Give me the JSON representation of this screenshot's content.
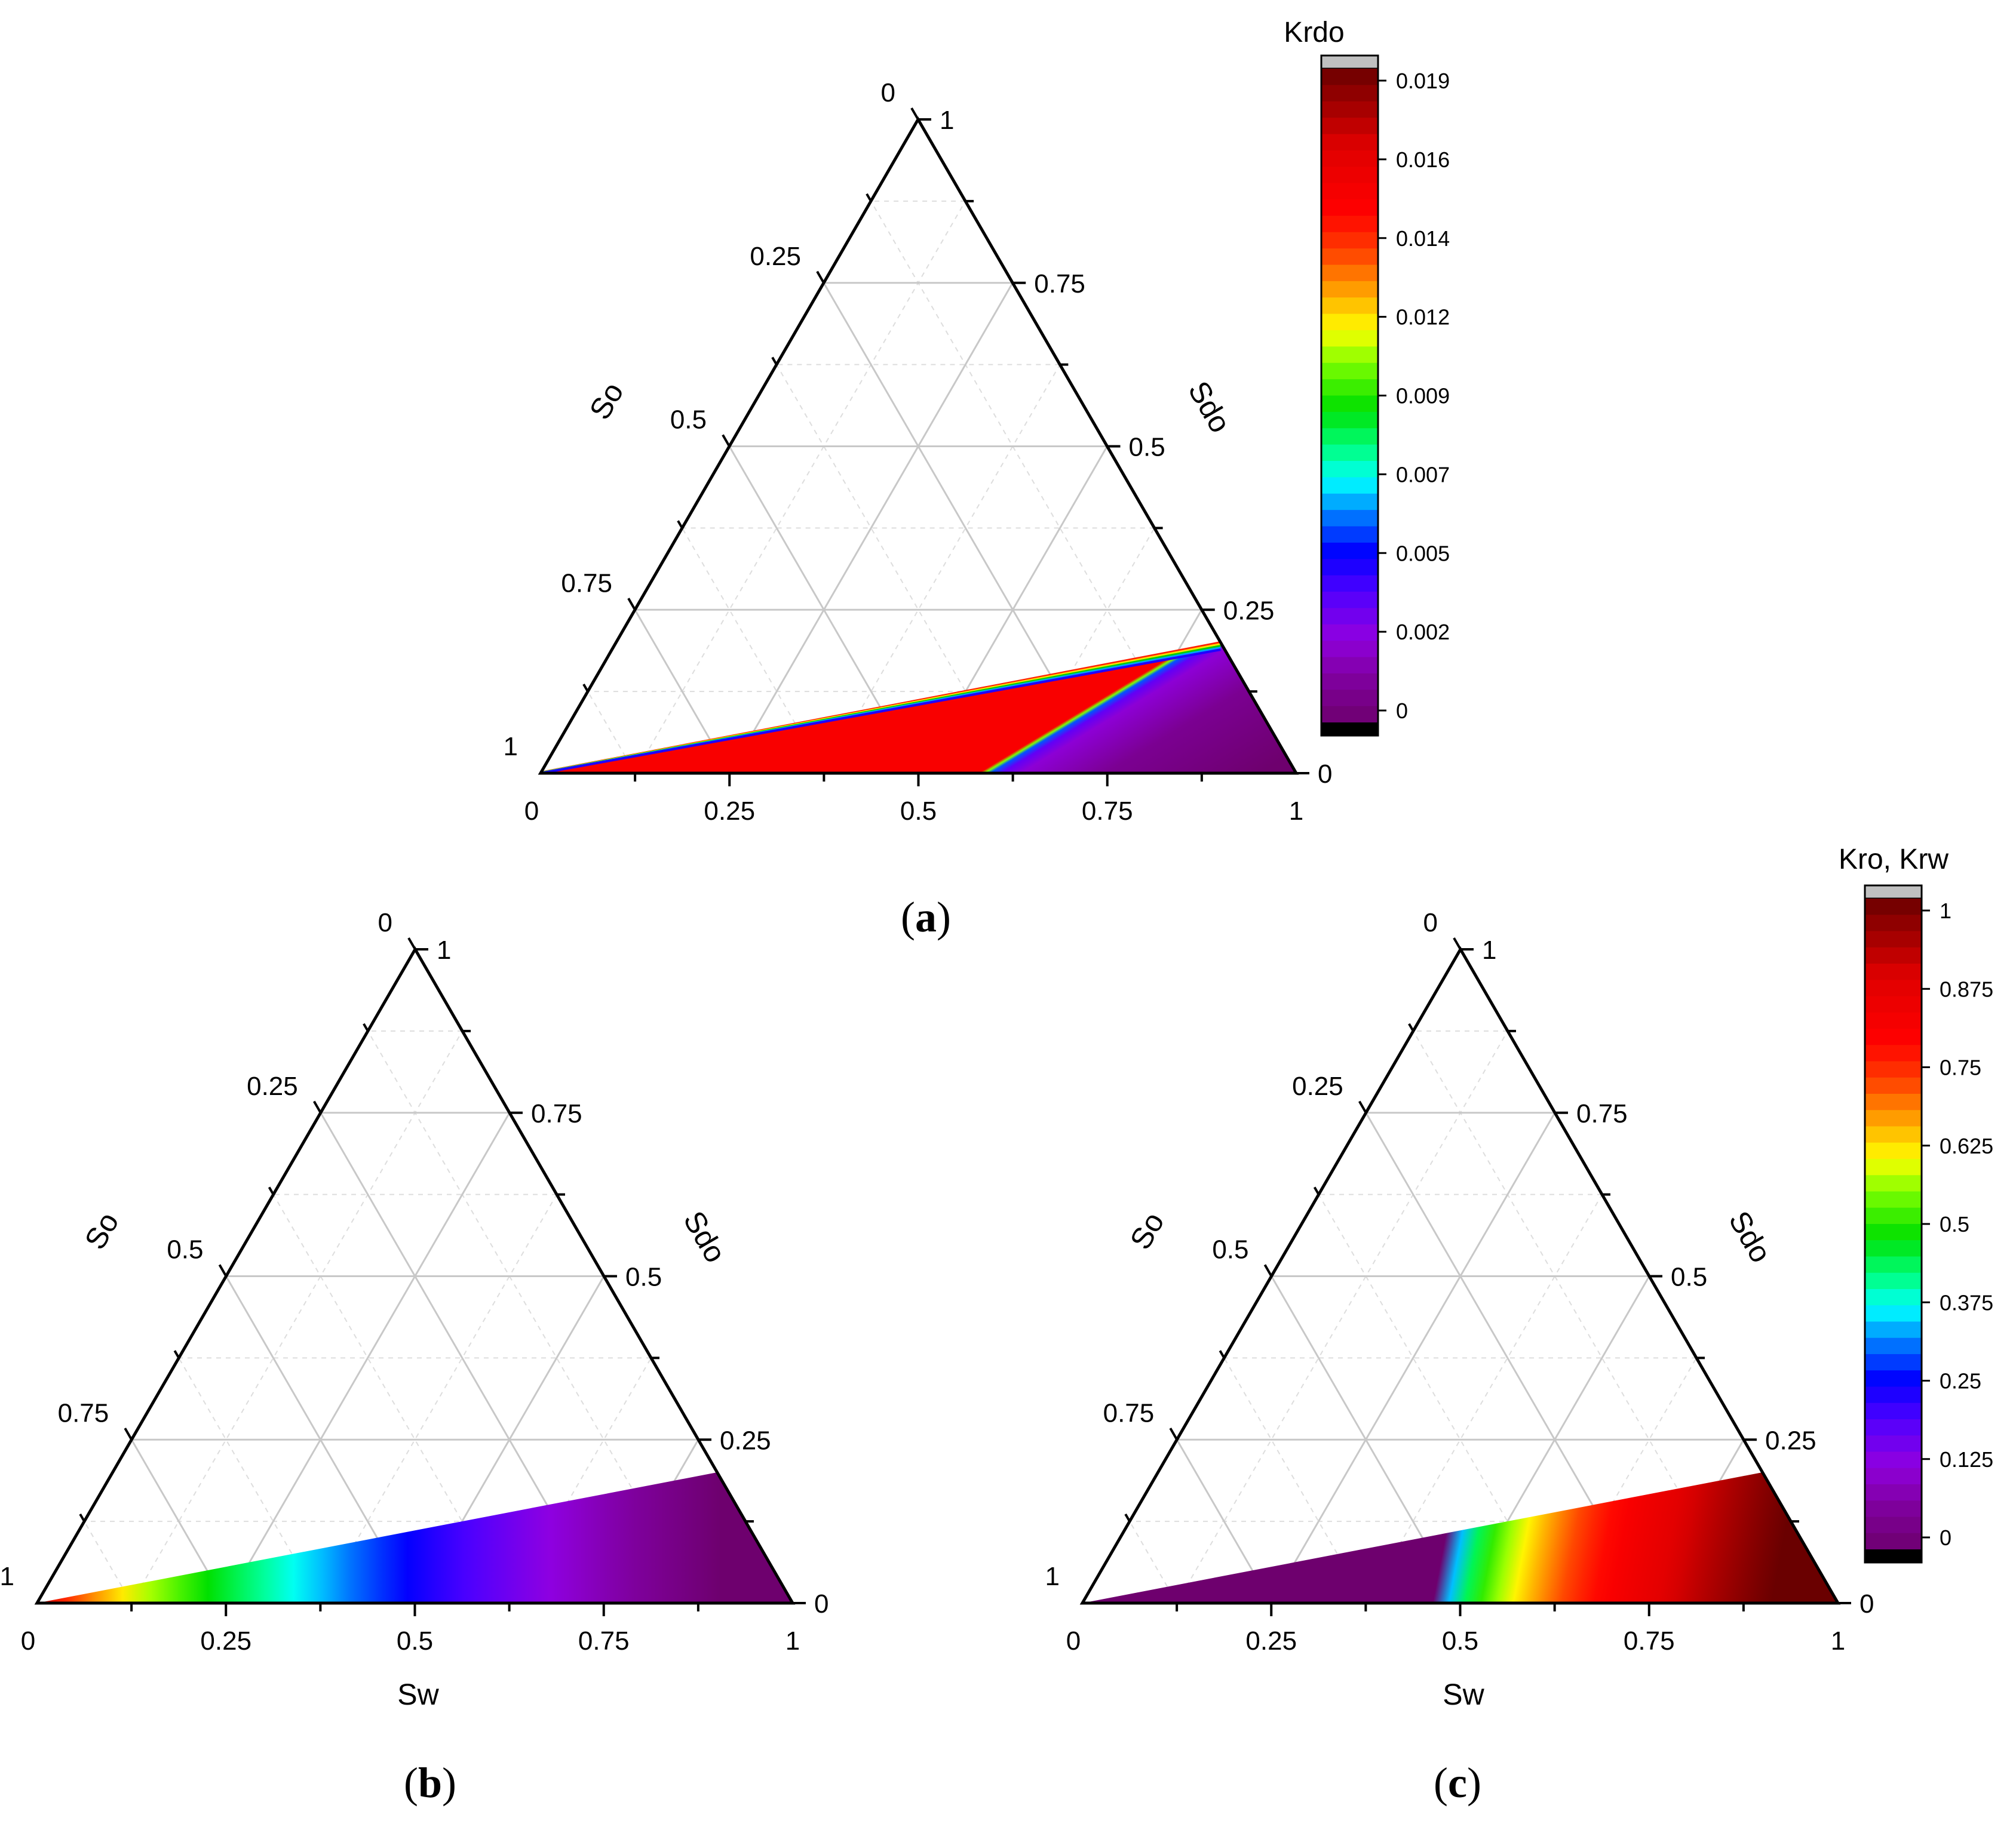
{
  "figure": {
    "panel_labels": [
      "a",
      "b",
      "c"
    ]
  },
  "chart_data": [
    {
      "panel": "a",
      "type": "ternary-contour",
      "axes": {
        "bottom": {
          "label": "",
          "ticks": [
            "0",
            "0.25",
            "0.5",
            "0.75",
            "1"
          ]
        },
        "left": {
          "label": "So",
          "ticks": [
            "1",
            "0.75",
            "0.5",
            "0.25",
            "0"
          ]
        },
        "right": {
          "label": "Sdo",
          "ticks": [
            "1",
            "0.75",
            "0.5",
            "0.25",
            "0"
          ]
        }
      },
      "colorbar": {
        "title": "Krdo",
        "tick_labels": [
          "0.019",
          "0.016",
          "0.014",
          "0.012",
          "0.009",
          "0.007",
          "0.005",
          "0.002",
          "0"
        ],
        "range": [
          0,
          0.019
        ]
      },
      "filled_region": {
        "boundary_So_at_Sw_1": 0.2,
        "description_values": "Krdo contours occupy region between Sw axis and line from (Sw=0) to (Sw=0.8, Sdo=0.2); values 0 to ~0.003 in region, thin red/yellow band near boundary"
      }
    },
    {
      "panel": "b",
      "type": "ternary-contour",
      "axes": {
        "bottom": {
          "label": "Sw",
          "ticks": [
            "0",
            "0.25",
            "0.5",
            "0.75",
            "1"
          ]
        },
        "left": {
          "label": "So",
          "ticks": [
            "1",
            "0.75",
            "0.5",
            "0.25",
            "0"
          ]
        },
        "right": {
          "label": "Sdo",
          "ticks": [
            "1",
            "0.75",
            "0.5",
            "0.25",
            "0"
          ]
        }
      },
      "filled_region": {
        "description_values": "Kro decreases from ~1 (red) at Sw=0 to ~0 (purple) at Sw=1 within region below Sdo=0.2 boundary"
      }
    },
    {
      "panel": "c",
      "type": "ternary-contour",
      "axes": {
        "bottom": {
          "label": "Sw",
          "ticks": [
            "0",
            "0.25",
            "0.5",
            "0.75",
            "1"
          ]
        },
        "left": {
          "label": "So",
          "ticks": [
            "1",
            "0.75",
            "0.5",
            "0.25",
            "0"
          ]
        },
        "right": {
          "label": "Sdo",
          "ticks": [
            "1",
            "0.75",
            "0.5",
            "0.25",
            "0"
          ]
        }
      },
      "colorbar": {
        "title": "Kro, Krw",
        "tick_labels": [
          "1",
          "0.875",
          "0.75",
          "0.625",
          "0.5",
          "0.375",
          "0.25",
          "0.125",
          "0"
        ],
        "range": [
          0,
          1
        ]
      },
      "filled_region": {
        "description_values": "Krw increases from 0 (purple) at top boundary to ~1 (dark red) at Sw=1 corner"
      }
    }
  ]
}
